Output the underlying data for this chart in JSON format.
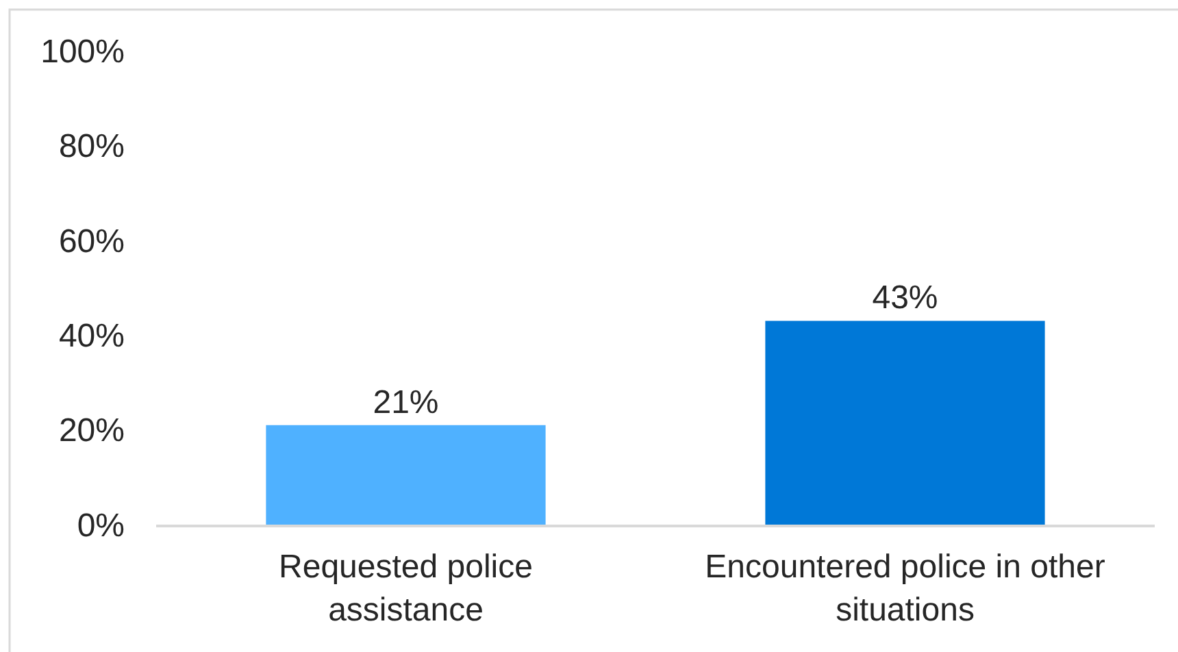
{
  "chart_data": {
    "type": "bar",
    "categories": [
      "Requested police assistance",
      "Encountered police in other situations"
    ],
    "values": [
      21,
      43
    ],
    "colors": [
      "#4fb1ff",
      "#0078d7"
    ],
    "value_labels": [
      "21%",
      "43%"
    ],
    "ylim": [
      0,
      100
    ],
    "yticks": [
      {
        "value": 0,
        "label": "0%"
      },
      {
        "value": 20,
        "label": "20%"
      },
      {
        "value": 40,
        "label": "40%"
      },
      {
        "value": 60,
        "label": "60%"
      },
      {
        "value": 80,
        "label": "80%"
      },
      {
        "value": 100,
        "label": "100%"
      }
    ]
  }
}
